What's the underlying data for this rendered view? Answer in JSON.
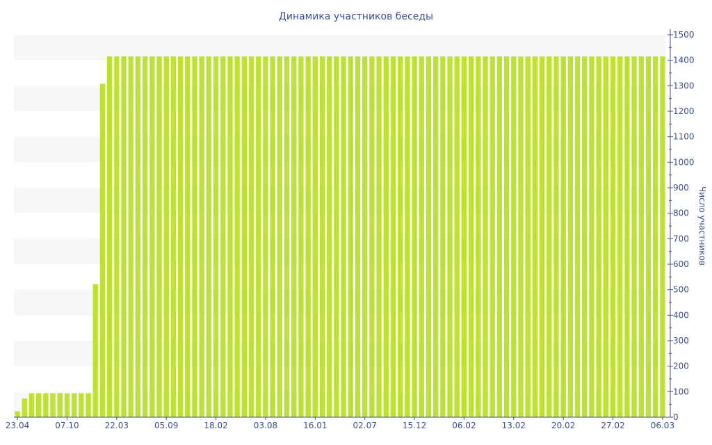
{
  "chart_data": {
    "type": "bar",
    "title": "Динамика участников беседы",
    "xlabel": "",
    "ylabel": "Число участников",
    "ylim": [
      0,
      1500
    ],
    "y_ticks": [
      0,
      100,
      200,
      300,
      400,
      500,
      600,
      700,
      800,
      900,
      1000,
      1100,
      1200,
      1300,
      1400,
      1500
    ],
    "y_axis_position": "right",
    "grid": "alternating horizontal bands",
    "bar_color": "#bfe131",
    "band_color": "#f7f7f7",
    "text_color": "#3e4f8f",
    "x_tick_labels": [
      "23.04",
      "07.10",
      "22.03",
      "05.09",
      "18.02",
      "03.08",
      "16.01",
      "02.07",
      "15.12",
      "06.02",
      "13.02",
      "20.02",
      "27.02",
      "06.03"
    ],
    "x_tick_bar_index": [
      0,
      7,
      14,
      21,
      28,
      35,
      42,
      49,
      56,
      63,
      70,
      77,
      84,
      91
    ],
    "values": [
      23,
      73,
      94,
      94,
      94,
      94,
      94,
      94,
      94,
      94,
      94,
      522,
      1308,
      1415,
      1415,
      1415,
      1415,
      1415,
      1415,
      1415,
      1415,
      1415,
      1415,
      1415,
      1415,
      1415,
      1415,
      1415,
      1415,
      1415,
      1415,
      1415,
      1415,
      1415,
      1415,
      1415,
      1415,
      1415,
      1415,
      1415,
      1415,
      1415,
      1415,
      1415,
      1415,
      1415,
      1415,
      1415,
      1415,
      1415,
      1415,
      1415,
      1415,
      1415,
      1415,
      1415,
      1415,
      1415,
      1415,
      1415,
      1415,
      1415,
      1415,
      1415,
      1415,
      1415,
      1415,
      1415,
      1415,
      1415,
      1415,
      1415,
      1415,
      1415,
      1415,
      1415,
      1415,
      1415,
      1415,
      1415,
      1415,
      1415,
      1415,
      1415,
      1415,
      1415,
      1415,
      1415,
      1415,
      1415,
      1415,
      1415
    ]
  }
}
